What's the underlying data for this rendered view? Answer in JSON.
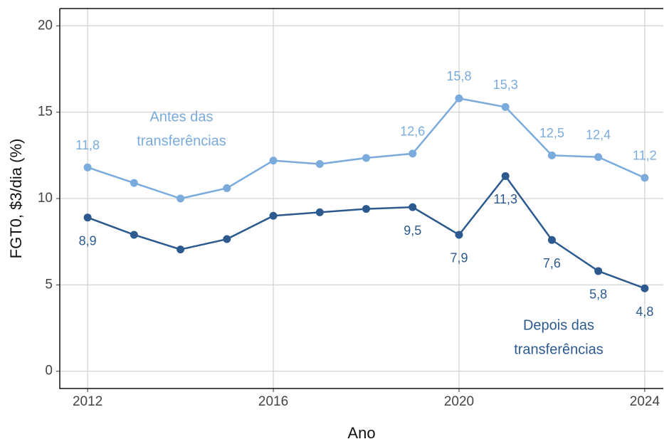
{
  "chart_data": {
    "type": "line",
    "x_label": "Ano",
    "y_label": "FGT0, $3/dia (%)",
    "x": [
      2012,
      2013,
      2014,
      2015,
      2016,
      2017,
      2018,
      2019,
      2020,
      2021,
      2022,
      2023,
      2024
    ],
    "series": [
      {
        "name": "Antes das transferências",
        "color": "#7aabdc",
        "values": [
          11.8,
          10.9,
          10.0,
          10.6,
          12.2,
          12.0,
          12.35,
          12.6,
          15.8,
          15.3,
          12.5,
          12.4,
          11.2
        ],
        "value_labels": [
          "11,8",
          null,
          null,
          null,
          null,
          null,
          null,
          "12,6",
          "15,8",
          "15,3",
          "12,5",
          "12,4",
          "11,2"
        ],
        "label_lines": [
          "Antes das",
          "transferências"
        ]
      },
      {
        "name": "Depois das transferências",
        "color": "#2c5a8f",
        "values": [
          8.9,
          7.9,
          7.05,
          7.65,
          9.0,
          9.2,
          9.4,
          9.5,
          7.9,
          11.3,
          7.6,
          5.8,
          4.8
        ],
        "value_labels": [
          "8,9",
          null,
          null,
          null,
          null,
          null,
          null,
          "9,5",
          "7,9",
          "11,3",
          "7,6",
          "5,8",
          "4,8"
        ],
        "label_lines": [
          "Depois das",
          "transferências"
        ]
      }
    ],
    "xlim": [
      2011.4,
      2024.4
    ],
    "xticks": [
      2012,
      2016,
      2020,
      2024
    ],
    "ylim": [
      -1,
      21
    ],
    "yticks": [
      0,
      5,
      10,
      15,
      20
    ],
    "grid": true
  }
}
